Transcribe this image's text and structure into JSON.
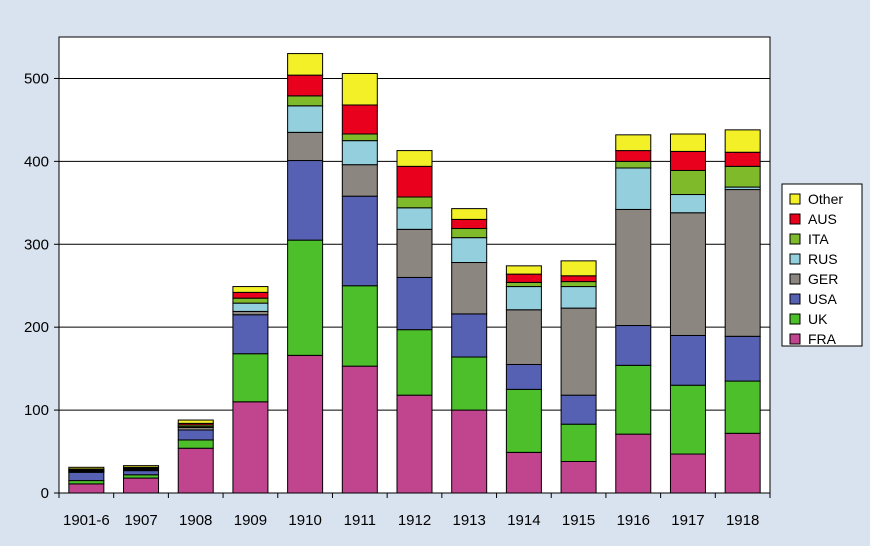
{
  "chart_data": {
    "type": "bar",
    "stacked": true,
    "categories": [
      "1901-6",
      "1907",
      "1908",
      "1909",
      "1910",
      "1911",
      "1912",
      "1913",
      "1914",
      "1915",
      "1916",
      "1917",
      "1918"
    ],
    "ylim": [
      0,
      550
    ],
    "yticks": [
      0,
      100,
      200,
      300,
      400,
      500
    ],
    "grid": true,
    "legend_position": "right",
    "series": [
      {
        "name": "FRA",
        "color": "#c0458e",
        "values": [
          11,
          18,
          54,
          110,
          166,
          153,
          118,
          100,
          49,
          38,
          71,
          47,
          72
        ]
      },
      {
        "name": "UK",
        "color": "#4cbf2a",
        "values": [
          4,
          4,
          10,
          58,
          139,
          97,
          79,
          64,
          76,
          45,
          83,
          83,
          63
        ]
      },
      {
        "name": "USA",
        "color": "#5661b3",
        "values": [
          10,
          5,
          12,
          47,
          96,
          108,
          63,
          52,
          30,
          35,
          48,
          60,
          54
        ]
      },
      {
        "name": "GER",
        "color": "#8c8680",
        "values": [
          1,
          1,
          3,
          4,
          34,
          38,
          58,
          62,
          66,
          105,
          140,
          148,
          177
        ]
      },
      {
        "name": "RUS",
        "color": "#93cfdd",
        "values": [
          1,
          1,
          1,
          10,
          32,
          29,
          26,
          30,
          28,
          26,
          50,
          22,
          3
        ]
      },
      {
        "name": "ITA",
        "color": "#7fba2a",
        "values": [
          1,
          1,
          2,
          6,
          12,
          8,
          13,
          11,
          5,
          6,
          8,
          29,
          25
        ]
      },
      {
        "name": "AUS",
        "color": "#e8001c",
        "values": [
          1,
          1,
          2,
          7,
          25,
          35,
          37,
          11,
          10,
          7,
          13,
          23,
          17
        ]
      },
      {
        "name": "Other",
        "color": "#f3f027",
        "values": [
          2,
          2,
          4,
          7,
          26,
          38,
          19,
          13,
          10,
          18,
          19,
          21,
          27
        ]
      }
    ]
  }
}
